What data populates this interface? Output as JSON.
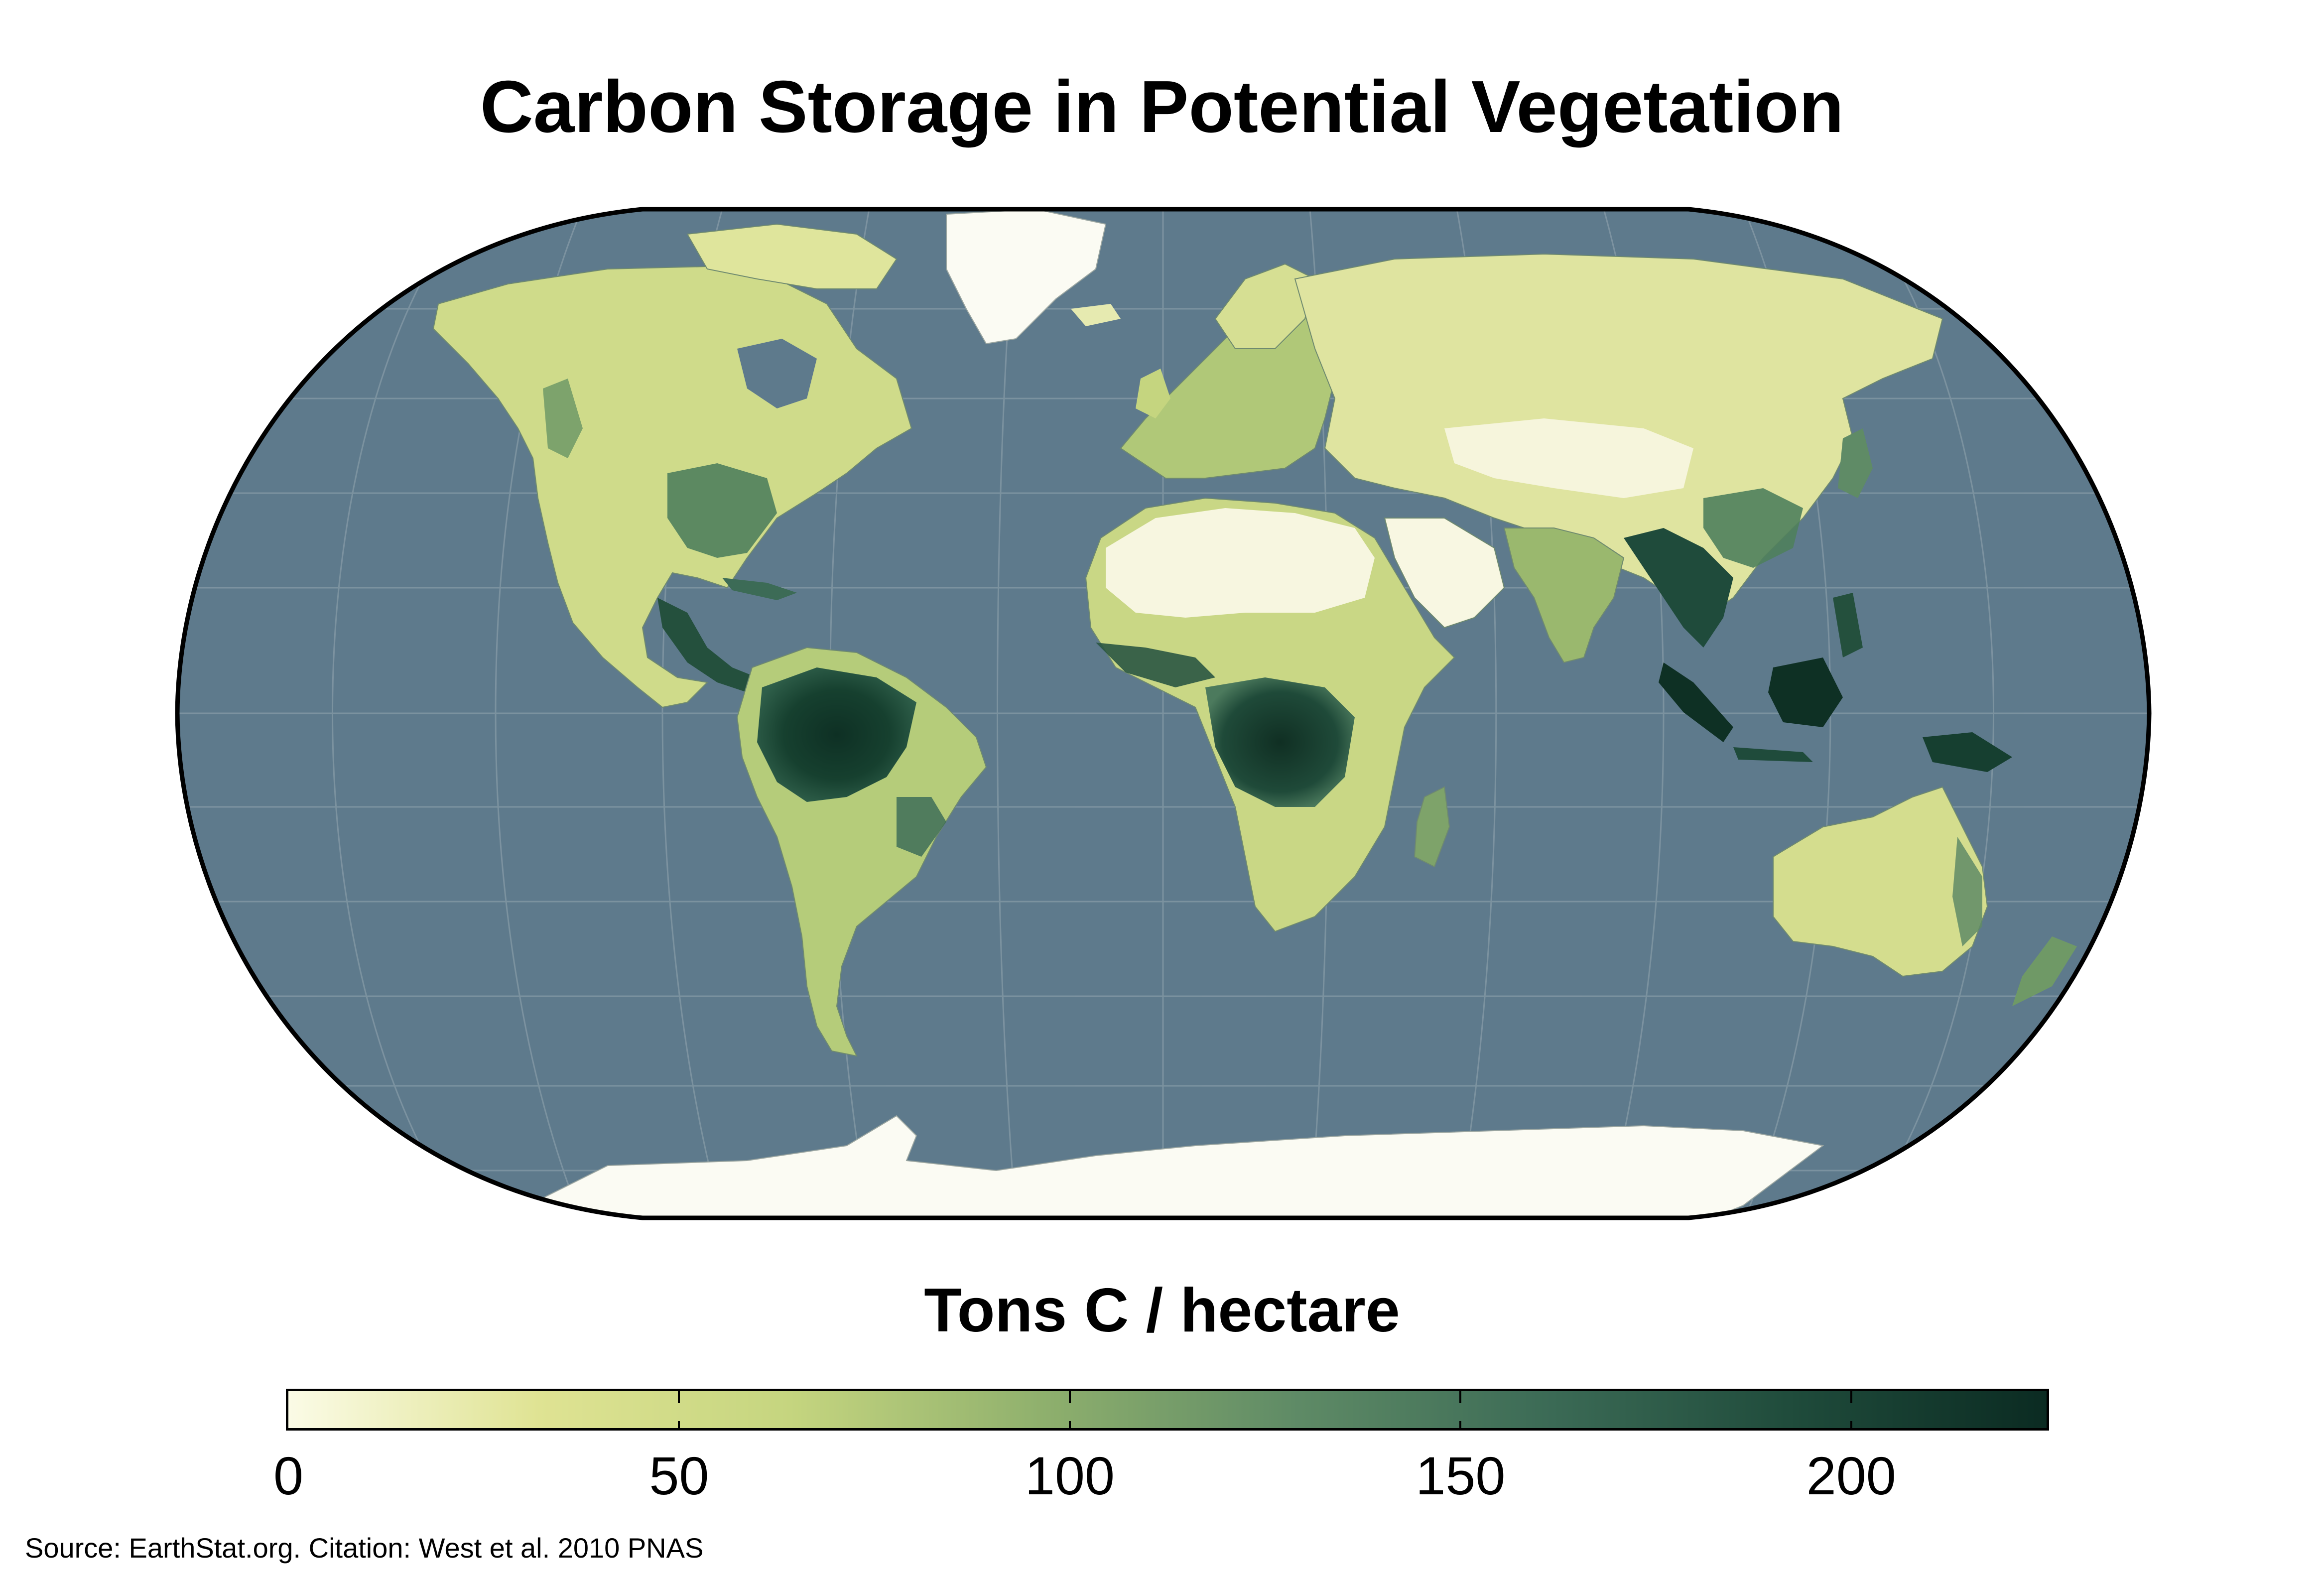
{
  "title": "Carbon Storage in Potential Vegetation",
  "colorbar": {
    "title": "Tons C / hectare",
    "min": 0,
    "max": 225,
    "ticks": [
      {
        "value": 0,
        "label": "0"
      },
      {
        "value": 50,
        "label": "50"
      },
      {
        "value": 100,
        "label": "100"
      },
      {
        "value": 150,
        "label": "150"
      },
      {
        "value": 200,
        "label": "200"
      }
    ],
    "colors": [
      "#fbfbe6",
      "#dfe393",
      "#c5d57f",
      "#8fb06d",
      "#5f8b66",
      "#3c6b56",
      "#1f4b3b",
      "#0b2b22"
    ]
  },
  "source": "Source: EarthStat.org. Citation: West et al. 2010 PNAS",
  "map": {
    "projection": "Robinson",
    "ocean_color": "#5e7a8c",
    "ice_color": "#fbfbf3",
    "graticule_color": "#7f95a2"
  }
}
